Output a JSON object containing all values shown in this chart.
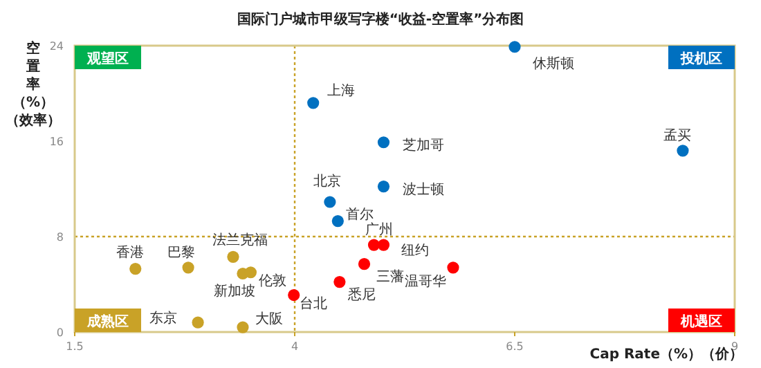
{
  "chart_data": {
    "type": "scatter",
    "title": "国际门户城市甲级写字楼“收益-空置率”分布图",
    "xlabel": "Cap Rate（%）（价）",
    "ylabel": "空置率（%）（效率）",
    "xlim": [
      1.5,
      9
    ],
    "ylim": [
      0,
      24
    ],
    "xticks": [
      1.5,
      4,
      6.5,
      9
    ],
    "yticks": [
      0,
      8,
      16,
      24
    ],
    "grid": false,
    "marker": "circle",
    "ref_lines": [
      {
        "axis": "x",
        "value": 4,
        "color": "#c9a227",
        "line_style": "dotted"
      },
      {
        "axis": "y",
        "value": 8,
        "color": "#c9a227",
        "line_style": "dotted"
      }
    ],
    "series": [
      {
        "color": "#0070c0",
        "x": [
          6.5,
          4.21,
          5.01,
          8.41,
          5.01,
          4.4,
          4.49
        ],
        "values": [
          23.9,
          19.2,
          15.9,
          15.2,
          12.2,
          10.9,
          9.3
        ]
      },
      {
        "color": "#ff0000",
        "x": [
          4.9,
          5.01,
          4.79,
          5.8,
          4.51,
          3.99
        ],
        "values": [
          7.3,
          7.3,
          5.7,
          5.4,
          4.2,
          3.1
        ]
      },
      {
        "color": "#c9a227",
        "x": [
          2.19,
          2.79,
          3.3,
          3.41,
          3.5,
          2.9,
          3.41
        ],
        "values": [
          5.3,
          5.4,
          6.3,
          4.9,
          5.0,
          0.8,
          0.4
        ]
      }
    ],
    "annotations": [
      "观望区",
      "投机区",
      "成熟区",
      "机遇区",
      {
        "text": "休斯顿",
        "x": 6.5,
        "y": 23.9
      },
      {
        "text": "上海",
        "x": 4.21,
        "y": 19.2
      },
      {
        "text": "芝加哥",
        "x": 5.01,
        "y": 15.9
      },
      {
        "text": "孟买",
        "x": 8.41,
        "y": 15.2
      },
      {
        "text": "波士顿",
        "x": 5.01,
        "y": 12.2
      },
      {
        "text": "北京",
        "x": 4.4,
        "y": 10.9
      },
      {
        "text": "首尔",
        "x": 4.49,
        "y": 9.3
      },
      {
        "text": "广州",
        "x": 4.9,
        "y": 7.3
      },
      {
        "text": "纽约",
        "x": 5.01,
        "y": 7.3
      },
      {
        "text": "三藩",
        "x": 4.79,
        "y": 5.7
      },
      {
        "text": "温哥华",
        "x": 5.8,
        "y": 5.4
      },
      {
        "text": "悉尼",
        "x": 4.51,
        "y": 4.2
      },
      {
        "text": "台北",
        "x": 3.99,
        "y": 3.1
      },
      {
        "text": "香港",
        "x": 2.19,
        "y": 5.3
      },
      {
        "text": "巴黎",
        "x": 2.79,
        "y": 5.4
      },
      {
        "text": "法兰克福",
        "x": 3.3,
        "y": 6.3
      },
      {
        "text": "新加坡",
        "x": 3.41,
        "y": 4.9
      },
      {
        "text": "伦敦",
        "x": 3.5,
        "y": 5.0
      },
      {
        "text": "东京",
        "x": 2.9,
        "y": 0.8
      },
      {
        "text": "大阪",
        "x": 3.41,
        "y": 0.4
      }
    ]
  }
}
